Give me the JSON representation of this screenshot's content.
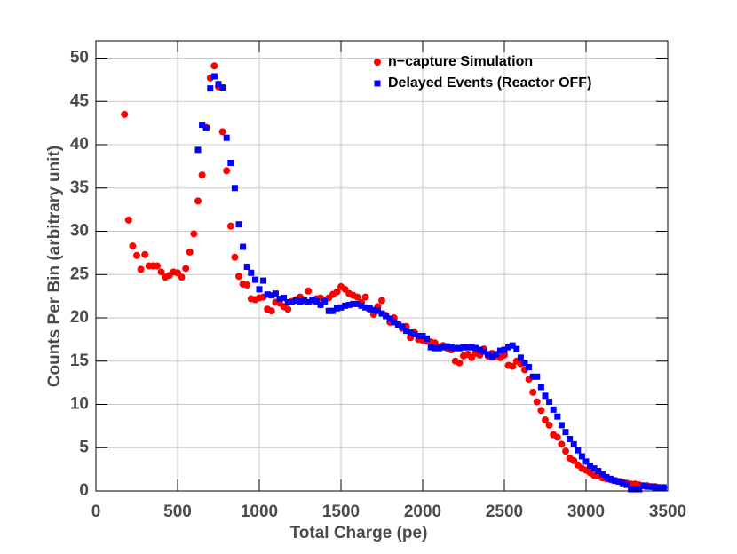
{
  "chart_data": {
    "type": "scatter",
    "xlabel": "Total Charge (pe)",
    "ylabel": "Counts Per Bin (arbitrary unit)",
    "xlim": [
      0,
      3500
    ],
    "ylim": [
      0,
      52
    ],
    "xticks": [
      0,
      500,
      1000,
      1500,
      2000,
      2500,
      3000,
      3500
    ],
    "yticks": [
      0,
      5,
      10,
      15,
      20,
      25,
      30,
      35,
      40,
      45,
      50
    ],
    "grid": true,
    "legend": "top right",
    "series": [
      {
        "name": "n−capture Simulation",
        "color": "#ff0000",
        "marker": "circle",
        "x": [
          175,
          200,
          225,
          250,
          275,
          300,
          325,
          350,
          375,
          400,
          425,
          450,
          475,
          500,
          525,
          550,
          575,
          600,
          625,
          650,
          675,
          700,
          725,
          750,
          775,
          800,
          825,
          850,
          875,
          900,
          925,
          950,
          975,
          1000,
          1025,
          1050,
          1075,
          1100,
          1125,
          1150,
          1175,
          1200,
          1225,
          1250,
          1275,
          1300,
          1325,
          1350,
          1375,
          1400,
          1425,
          1450,
          1475,
          1500,
          1525,
          1550,
          1575,
          1600,
          1625,
          1650,
          1675,
          1700,
          1725,
          1750,
          1775,
          1800,
          1825,
          1850,
          1875,
          1900,
          1925,
          1950,
          1975,
          2000,
          2025,
          2050,
          2075,
          2100,
          2125,
          2150,
          2175,
          2200,
          2225,
          2250,
          2275,
          2300,
          2325,
          2350,
          2375,
          2400,
          2425,
          2450,
          2475,
          2500,
          2525,
          2550,
          2575,
          2600,
          2625,
          2650,
          2675,
          2700,
          2725,
          2750,
          2775,
          2800,
          2825,
          2850,
          2875,
          2900,
          2925,
          2950,
          2975,
          3000,
          3025,
          3050,
          3075,
          3100,
          3125,
          3150,
          3175,
          3200,
          3225,
          3250,
          3275,
          3300,
          3325,
          3350,
          3375,
          3400,
          3425,
          3450,
          3475
        ],
        "values": [
          43.5,
          31.3,
          28.3,
          27.2,
          25.6,
          27.3,
          26.0,
          26.0,
          26.0,
          25.3,
          24.7,
          24.9,
          25.3,
          25.2,
          24.7,
          25.7,
          27.6,
          29.7,
          33.5,
          36.5,
          42.0,
          47.7,
          49.1,
          46.7,
          41.5,
          37.0,
          30.6,
          27.0,
          24.8,
          23.9,
          23.8,
          22.2,
          22.1,
          22.3,
          22.4,
          21.0,
          20.8,
          21.8,
          21.7,
          21.3,
          21.0,
          21.9,
          22.1,
          22.4,
          22.0,
          23.1,
          22.0,
          22.2,
          22.3,
          22.0,
          22.3,
          22.7,
          23.0,
          23.6,
          23.3,
          22.8,
          22.6,
          22.4,
          21.8,
          22.4,
          21.0,
          20.4,
          21.3,
          22.0,
          20.3,
          19.5,
          20.0,
          19.3,
          18.8,
          19.0,
          17.7,
          18.3,
          17.5,
          17.4,
          17.3,
          17.2,
          17.1,
          16.6,
          16.8,
          16.5,
          16.3,
          15.0,
          14.8,
          15.6,
          15.8,
          15.4,
          15.9,
          15.7,
          16.4,
          15.6,
          15.9,
          15.6,
          15.4,
          15.7,
          14.5,
          14.4,
          15.0,
          14.7,
          14.0,
          12.9,
          11.4,
          10.3,
          9.3,
          8.2,
          7.6,
          6.5,
          6.2,
          5.4,
          4.6,
          3.8,
          3.5,
          3.0,
          2.6,
          2.4,
          2.1,
          1.8,
          1.7,
          1.5,
          1.4,
          1.3,
          1.2,
          1.1,
          1.0,
          0.9,
          0.8,
          0.8,
          0.7,
          0.6,
          0.6,
          0.5,
          0.5,
          0.4,
          0.4
        ]
      },
      {
        "name": "Delayed Events (Reactor OFF)",
        "color": "#0000ff",
        "marker": "square",
        "x": [
          625,
          650,
          675,
          700,
          725,
          750,
          775,
          800,
          825,
          850,
          875,
          900,
          925,
          950,
          975,
          1000,
          1025,
          1050,
          1075,
          1100,
          1125,
          1150,
          1175,
          1200,
          1225,
          1250,
          1275,
          1300,
          1325,
          1350,
          1375,
          1400,
          1425,
          1450,
          1475,
          1500,
          1525,
          1550,
          1575,
          1600,
          1625,
          1650,
          1675,
          1700,
          1725,
          1750,
          1775,
          1800,
          1825,
          1850,
          1875,
          1900,
          1925,
          1950,
          1975,
          2000,
          2025,
          2050,
          2075,
          2100,
          2125,
          2150,
          2175,
          2200,
          2225,
          2250,
          2275,
          2300,
          2325,
          2350,
          2375,
          2400,
          2425,
          2450,
          2475,
          2500,
          2525,
          2550,
          2575,
          2600,
          2625,
          2650,
          2675,
          2700,
          2725,
          2750,
          2775,
          2800,
          2825,
          2850,
          2875,
          2900,
          2925,
          2950,
          2975,
          3000,
          3025,
          3050,
          3075,
          3100,
          3125,
          3150,
          3175,
          3200,
          3225,
          3250,
          3275,
          3300,
          3325,
          3350,
          3375,
          3400,
          3425,
          3450,
          3475
        ],
        "values": [
          39.4,
          42.3,
          41.9,
          46.5,
          47.9,
          47.0,
          46.6,
          40.8,
          37.9,
          35.0,
          30.8,
          28.2,
          25.9,
          25.2,
          24.4,
          23.3,
          24.3,
          22.7,
          22.6,
          22.8,
          22.2,
          22.3,
          21.8,
          21.8,
          22.0,
          21.9,
          22.0,
          21.8,
          22.1,
          21.9,
          21.5,
          21.9,
          20.8,
          20.8,
          21.1,
          21.2,
          21.4,
          21.5,
          21.6,
          21.6,
          21.4,
          21.2,
          21.1,
          20.9,
          20.8,
          20.5,
          20.2,
          19.9,
          19.5,
          19.2,
          19.0,
          18.5,
          18.3,
          18.1,
          17.9,
          17.9,
          17.6,
          16.6,
          16.5,
          16.5,
          16.6,
          16.7,
          16.6,
          16.5,
          16.5,
          16.6,
          16.6,
          16.6,
          16.5,
          16.3,
          16.1,
          15.8,
          15.5,
          15.8,
          16.2,
          16.3,
          16.6,
          16.8,
          16.4,
          15.4,
          14.8,
          14.3,
          13.2,
          13.2,
          12.0,
          11.0,
          10.3,
          9.4,
          8.6,
          7.6,
          6.8,
          6.0,
          5.4,
          4.7,
          4.0,
          3.4,
          2.9,
          2.6,
          2.3,
          1.9,
          1.6,
          1.4,
          1.2,
          1.1,
          0.9,
          0.7,
          0.2,
          0.2,
          0.2,
          0.6,
          0.5,
          0.5,
          0.4,
          0.4,
          0.4
        ]
      }
    ]
  }
}
